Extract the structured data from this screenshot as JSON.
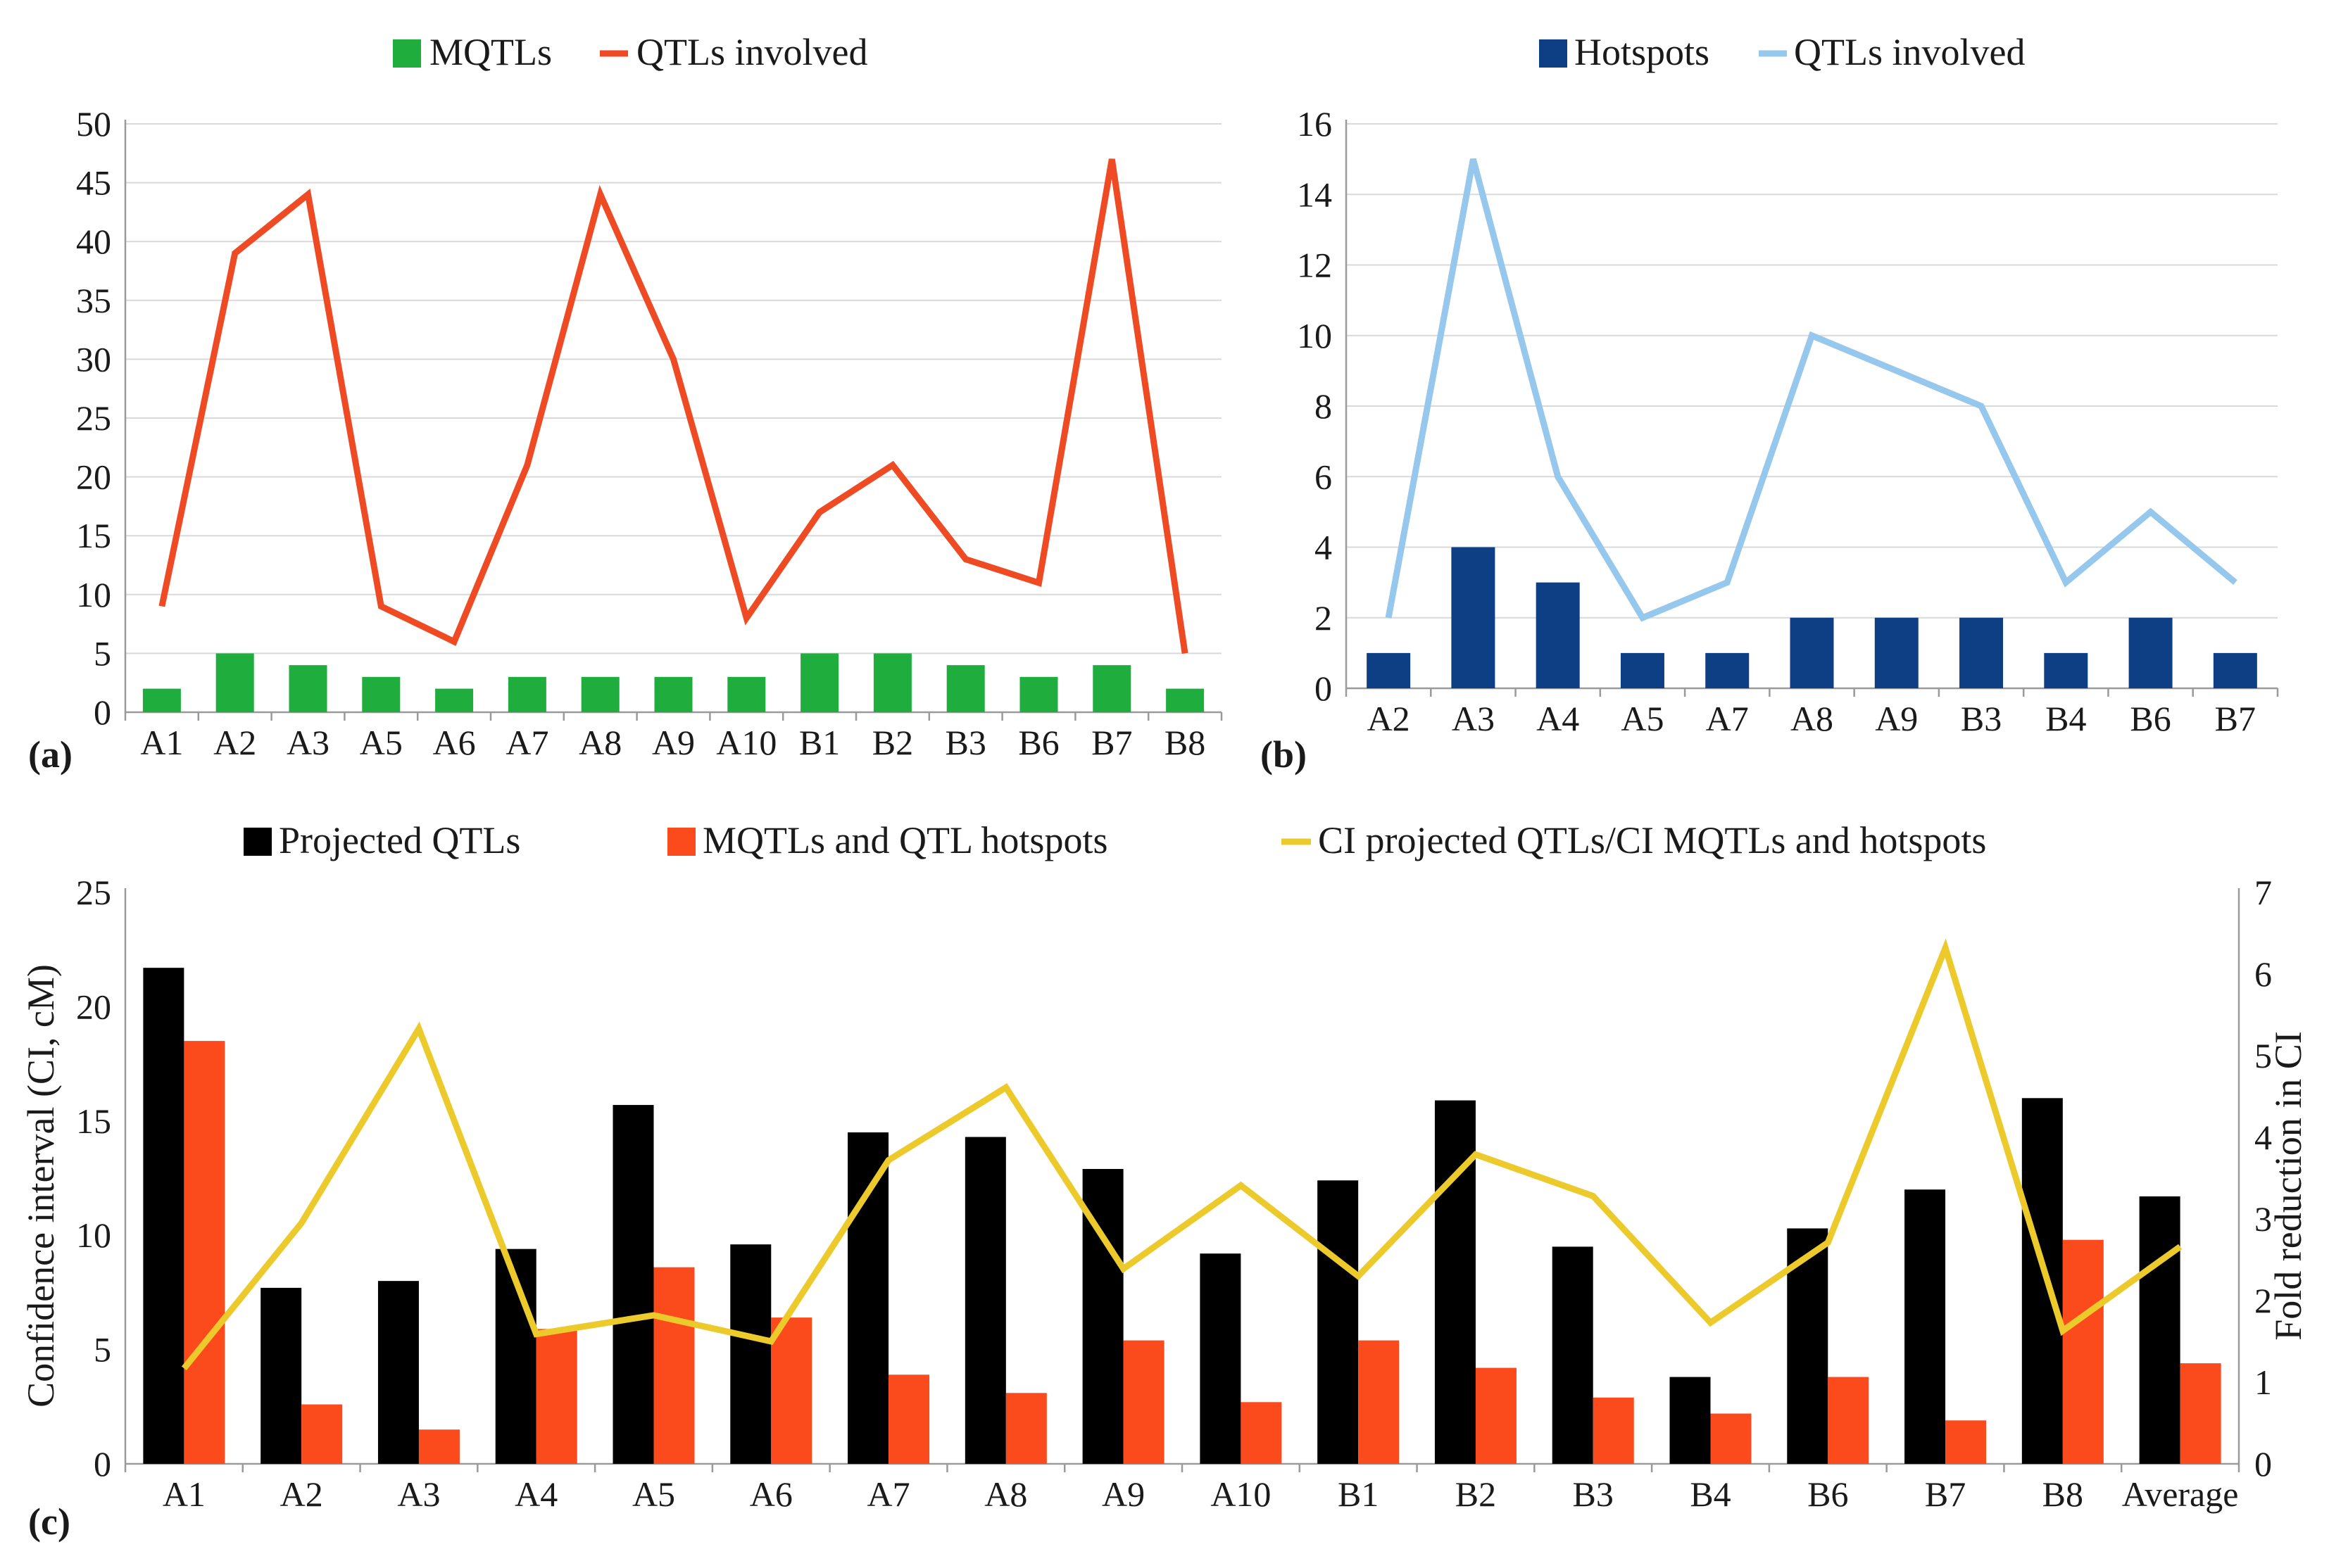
{
  "colors": {
    "mqtl_bar": "#1fae3e",
    "qtl_line_a": "#ee4b25",
    "hotspot_bar": "#0e3f84",
    "qtl_line_b": "#96c7ec",
    "projected_bar": "#000000",
    "mqtl_hotspot_bar": "#fb4a1c",
    "ratio_line": "#ecca2b"
  },
  "chart_data": [
    {
      "panel": "(a)",
      "type": "bar+line",
      "categories": [
        "A1",
        "A2",
        "A3",
        "A5",
        "A6",
        "A7",
        "A8",
        "A9",
        "A10",
        "B1",
        "B2",
        "B3",
        "B6",
        "B7",
        "B8"
      ],
      "series": [
        {
          "name": "MQTLs",
          "type": "bar",
          "values": [
            2,
            5,
            4,
            3,
            2,
            3,
            3,
            3,
            3,
            5,
            5,
            4,
            3,
            4,
            2
          ]
        },
        {
          "name": "QTLs involved",
          "type": "line",
          "values": [
            9,
            39,
            44,
            9,
            6,
            21,
            44,
            30,
            8,
            17,
            21,
            13,
            11,
            47,
            5
          ]
        }
      ],
      "ylim": [
        0,
        50
      ],
      "yticks": [
        0,
        5,
        10,
        15,
        20,
        25,
        30,
        35,
        40,
        45,
        50
      ],
      "grid": true,
      "legend": "top-center"
    },
    {
      "panel": "(b)",
      "type": "bar+line",
      "categories": [
        "A2",
        "A3",
        "A4",
        "A5",
        "A7",
        "A8",
        "A9",
        "B3",
        "B4",
        "B6",
        "B7"
      ],
      "series": [
        {
          "name": "Hotspots",
          "type": "bar",
          "values": [
            1,
            4,
            3,
            1,
            1,
            2,
            2,
            2,
            1,
            2,
            1
          ]
        },
        {
          "name": "QTLs involved",
          "type": "line",
          "values": [
            2,
            15,
            6,
            2,
            3,
            10,
            9,
            8,
            3,
            5,
            3
          ]
        }
      ],
      "ylim": [
        0,
        16
      ],
      "yticks": [
        0,
        2,
        4,
        6,
        8,
        10,
        12,
        14,
        16
      ],
      "grid": true,
      "legend": "top-center"
    },
    {
      "panel": "(c)",
      "type": "bar+line",
      "categories": [
        "A1",
        "A2",
        "A3",
        "A4",
        "A5",
        "A6",
        "A7",
        "A8",
        "A9",
        "A10",
        "B1",
        "B2",
        "B3",
        "B4",
        "B6",
        "B7",
        "B8",
        "Average"
      ],
      "series": [
        {
          "name": "Projected QTLs",
          "type": "bar",
          "axis": "left",
          "values": [
            21.7,
            7.7,
            8.0,
            9.4,
            15.7,
            9.6,
            14.5,
            14.3,
            12.9,
            9.2,
            12.4,
            15.9,
            9.5,
            3.8,
            10.3,
            12.0,
            16.0,
            11.7
          ]
        },
        {
          "name": "MQTLs and QTL hotspots",
          "type": "bar",
          "axis": "left",
          "values": [
            18.5,
            2.6,
            1.5,
            5.9,
            8.6,
            6.4,
            3.9,
            3.1,
            5.4,
            2.7,
            5.4,
            4.2,
            2.9,
            2.2,
            3.8,
            1.9,
            9.8,
            4.4
          ]
        },
        {
          "name": "CI projected QTLs/CI MQTLs and hotspots",
          "type": "line",
          "axis": "right",
          "values": [
            1.17,
            2.95,
            5.33,
            1.59,
            1.82,
            1.5,
            3.72,
            4.61,
            2.39,
            3.41,
            2.3,
            3.79,
            3.28,
            1.73,
            2.71,
            6.32,
            1.63,
            2.66
          ]
        }
      ],
      "ylabel": "Confidence interval (CI, cM)",
      "ylabel_right": "Fold reduction in CI",
      "ylim": [
        0,
        25
      ],
      "ylim_right": [
        0,
        7
      ],
      "yticks": [
        0,
        5,
        10,
        15,
        20,
        25
      ],
      "yticks_right": [
        0,
        1,
        2,
        3,
        4,
        5,
        6,
        7
      ],
      "grid": false,
      "legend": "top-center"
    }
  ]
}
